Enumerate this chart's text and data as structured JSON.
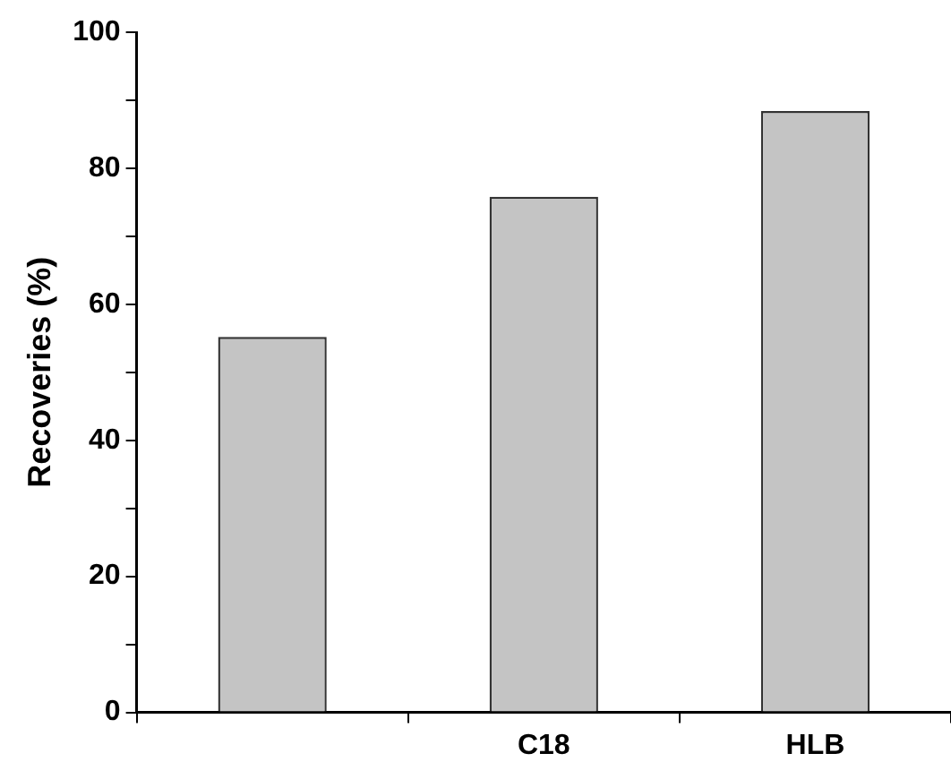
{
  "chart_data": {
    "type": "bar",
    "ylabel": "Recoveries (%)",
    "categories": [
      null,
      "C18",
      "HLB"
    ],
    "values": [
      55.2,
      75.8,
      88.4
    ],
    "color": "#c4c4c4",
    "ylim": [
      0,
      100
    ],
    "yticks": [
      0,
      {
        "value": 10,
        "label": null
      },
      20,
      {
        "value": 30,
        "label": null
      },
      40,
      {
        "value": 50,
        "label": null
      },
      60,
      {
        "value": 70,
        "label": null
      },
      80,
      {
        "value": 90,
        "label": null
      },
      100
    ]
  }
}
